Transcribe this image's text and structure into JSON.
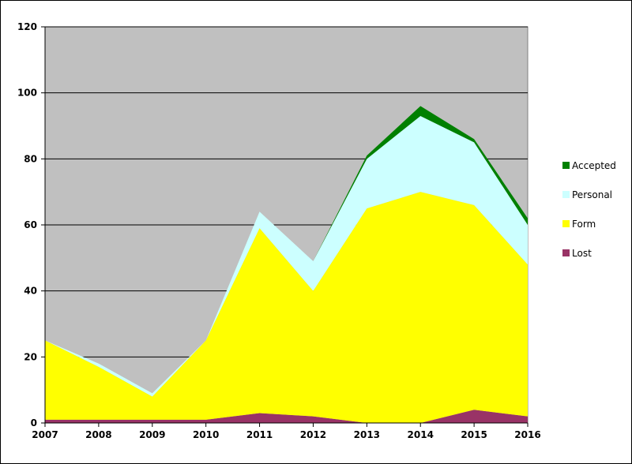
{
  "chart_data": {
    "type": "area",
    "stacked": true,
    "title": "",
    "xlabel": "",
    "ylabel": "",
    "x": [
      2007,
      2008,
      2009,
      2010,
      2011,
      2012,
      2013,
      2014,
      2015,
      2016
    ],
    "ylim": [
      0,
      120
    ],
    "yticks": [
      0,
      20,
      40,
      60,
      80,
      100,
      120
    ],
    "grid": true,
    "legend_position": "right",
    "plot_background": "#c0c0c0",
    "series": [
      {
        "name": "Lost",
        "color": "#993366",
        "values": [
          1,
          1,
          1,
          1,
          3,
          2,
          0,
          0,
          4,
          2
        ]
      },
      {
        "name": "Form",
        "color": "#ffff00",
        "values": [
          24,
          16,
          7,
          24,
          56,
          38,
          65,
          70,
          62,
          46
        ]
      },
      {
        "name": "Personal",
        "color": "#ccffff",
        "values": [
          0,
          1,
          1,
          0,
          5,
          9,
          15,
          23,
          19,
          12
        ]
      },
      {
        "name": "Accepted",
        "color": "#008000",
        "values": [
          0,
          0,
          0,
          0,
          0,
          0,
          1,
          3,
          1,
          2
        ]
      }
    ],
    "legend_order": [
      "Accepted",
      "Personal",
      "Form",
      "Lost"
    ]
  }
}
